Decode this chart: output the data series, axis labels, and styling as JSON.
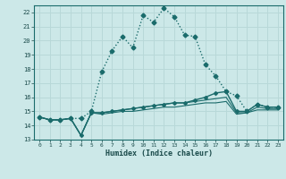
{
  "xlabel": "Humidex (Indice chaleur)",
  "background_color": "#cce8e8",
  "grid_color": "#b8d8d8",
  "line_color": "#1a6b6b",
  "xlim": [
    -0.5,
    23.5
  ],
  "ylim": [
    13,
    22.5
  ],
  "xticks": [
    0,
    1,
    2,
    3,
    4,
    5,
    6,
    7,
    8,
    9,
    10,
    11,
    12,
    13,
    14,
    15,
    16,
    17,
    18,
    19,
    20,
    21,
    22,
    23
  ],
  "yticks": [
    13,
    14,
    15,
    16,
    17,
    18,
    19,
    20,
    21,
    22
  ],
  "series1_x": [
    0,
    1,
    2,
    3,
    4,
    5,
    6,
    7,
    8,
    9,
    10,
    11,
    12,
    13,
    14,
    15,
    16,
    17,
    18,
    19,
    20,
    21,
    22,
    23
  ],
  "series1_y": [
    14.6,
    14.4,
    14.4,
    14.5,
    14.5,
    15.0,
    17.8,
    19.3,
    20.3,
    19.5,
    21.8,
    21.3,
    22.3,
    21.7,
    20.4,
    20.3,
    18.3,
    17.5,
    16.4,
    16.1,
    15.0,
    15.5,
    15.3,
    15.3
  ],
  "series2_x": [
    0,
    1,
    2,
    3,
    4,
    5,
    6,
    7,
    8,
    9,
    10,
    11,
    12,
    13,
    14,
    15,
    16,
    17,
    18,
    19,
    20,
    21,
    22,
    23
  ],
  "series2_y": [
    14.6,
    14.4,
    14.4,
    14.5,
    13.3,
    14.9,
    14.9,
    15.0,
    15.1,
    15.2,
    15.3,
    15.4,
    15.5,
    15.6,
    15.6,
    15.8,
    16.0,
    16.3,
    16.4,
    15.0,
    15.0,
    15.5,
    15.3,
    15.3
  ],
  "series3_x": [
    0,
    1,
    2,
    3,
    4,
    5,
    6,
    7,
    8,
    9,
    10,
    11,
    12,
    13,
    14,
    15,
    16,
    17,
    18,
    19,
    20,
    21,
    22,
    23
  ],
  "series3_y": [
    14.6,
    14.4,
    14.4,
    14.5,
    13.3,
    14.9,
    14.9,
    15.0,
    15.1,
    15.2,
    15.3,
    15.4,
    15.5,
    15.6,
    15.6,
    15.7,
    15.8,
    15.9,
    16.0,
    14.9,
    14.9,
    15.3,
    15.2,
    15.2
  ],
  "series4_x": [
    0,
    1,
    2,
    3,
    4,
    5,
    6,
    7,
    8,
    9,
    10,
    11,
    12,
    13,
    14,
    15,
    16,
    17,
    18,
    19,
    20,
    21,
    22,
    23
  ],
  "series4_y": [
    14.6,
    14.4,
    14.4,
    14.5,
    13.3,
    14.9,
    14.8,
    14.9,
    15.0,
    15.0,
    15.1,
    15.2,
    15.3,
    15.3,
    15.4,
    15.5,
    15.6,
    15.6,
    15.7,
    14.8,
    14.9,
    15.1,
    15.1,
    15.1
  ]
}
